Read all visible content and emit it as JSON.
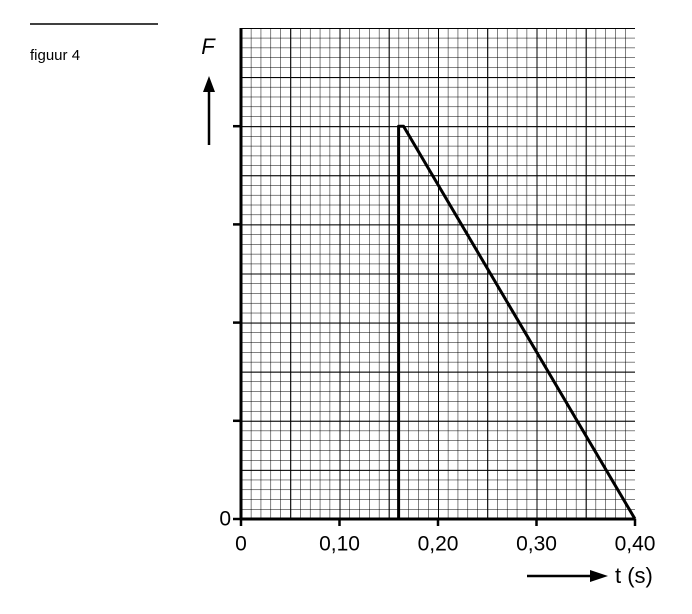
{
  "chart_data": {
    "type": "line",
    "caption": "figuur 4",
    "y_label": "F",
    "x_label": "t (s)",
    "x": [
      0,
      0.16,
      0.16,
      0.165,
      0.4
    ],
    "series": [
      {
        "color": "#000000",
        "values": [
          0,
          0,
          4,
          4,
          0
        ]
      }
    ],
    "xlim": [
      0,
      0.4
    ],
    "ylim": [
      0,
      5
    ],
    "xticks": [
      0,
      {
        "value": 0.1,
        "label": "0,10"
      },
      {
        "value": 0.2,
        "label": "0,20"
      },
      {
        "value": 0.3,
        "label": "0,30"
      },
      {
        "value": 0.4,
        "label": "0,40"
      }
    ],
    "yticks": [
      0,
      {
        "value": 1,
        "label": null
      },
      {
        "value": 2,
        "label": null
      },
      {
        "value": 3,
        "label": null
      },
      {
        "value": 4,
        "label": null
      }
    ],
    "grid": true
  }
}
